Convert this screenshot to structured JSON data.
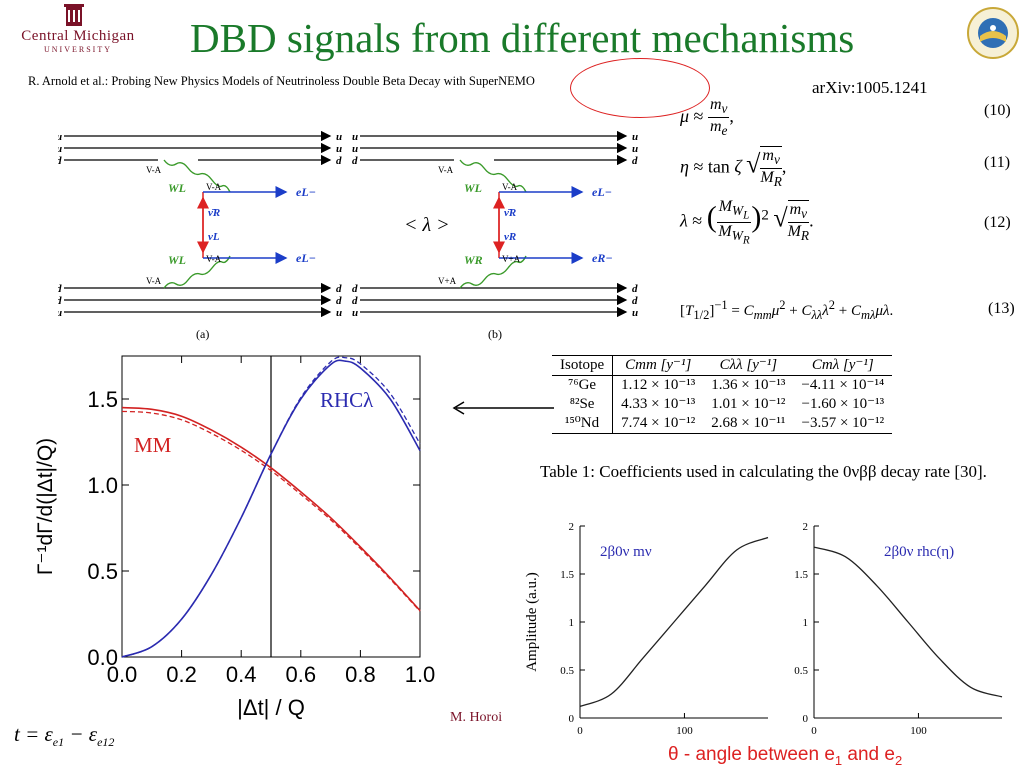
{
  "slide": {
    "title": "DBD signals from different mechanisms",
    "logo_left": {
      "line1": "Central Michigan",
      "line2": "UNIVERSITY"
    },
    "paper_reference": "R. Arnold et al.: Probing New Physics Models of Neutrinoless Double Beta Decay with SuperNEMO",
    "arxiv": "arXiv:1005.1241",
    "lambda_label": "< λ >",
    "author": "M. Horoi",
    "t_formula": "t = εe1 − εe12",
    "theta_caption": "θ - angle between e1 and e2"
  },
  "equations": [
    {
      "lhs": "μ ≈",
      "rhs": "mν / me ,",
      "num": "(10)"
    },
    {
      "lhs": "η ≈ tan ζ",
      "rhs": "√(mν / MR) ,",
      "num": "(11)"
    },
    {
      "lhs": "λ ≈",
      "rhs": "(MWL / MWR)² √(mν / MR) .",
      "num": "(12)"
    },
    {
      "lhs": "[T1/2]⁻¹ = Cmm μ² + Cλλ λ² + Cmλ μ λ .",
      "rhs": "",
      "num": "(13)"
    }
  ],
  "feynman": {
    "captions": [
      "(a)",
      "(b)"
    ],
    "quark_labels_top": [
      "u",
      "u",
      "d"
    ],
    "quark_labels_bottom": [
      "d",
      "d",
      "u"
    ],
    "diagram_a": {
      "W_top": "WL",
      "W_bottom": "WL",
      "vertex_top": "V-A",
      "vertex_bottom": "V-A",
      "vertex_mid_top": "V-A",
      "vertex_mid_bottom": "V-A",
      "nu_R": "ν̄R",
      "nu_L": "νL",
      "e_top": "eL−",
      "e_bottom": "eL−"
    },
    "diagram_b": {
      "W_top": "WL",
      "W_bottom": "WR",
      "vertex_top": "V-A",
      "vertex_bottom": "V+A",
      "vertex_mid_top": "V-A",
      "vertex_mid_bottom": "V+A",
      "nu_R": "ν̄R",
      "nu_R2": "νR",
      "e_top": "eL−",
      "e_bottom": "eR−"
    }
  },
  "table": {
    "headers": [
      "Isotope",
      "Cmm [y⁻¹]",
      "Cλλ [y⁻¹]",
      "Cmλ [y⁻¹]"
    ],
    "rows": [
      [
        "⁷⁶Ge",
        "1.12 × 10⁻¹³",
        "1.36 × 10⁻¹³",
        "−4.11 × 10⁻¹⁴"
      ],
      [
        "⁸²Se",
        "4.33 × 10⁻¹³",
        "1.01 × 10⁻¹²",
        "−1.60 × 10⁻¹³"
      ],
      [
        "¹⁵⁰Nd",
        "7.74 × 10⁻¹²",
        "2.68 × 10⁻¹¹",
        "−3.57 × 10⁻¹²"
      ]
    ],
    "caption": "Table 1: Coefficients used in calculating the 0νββ decay rate [30]."
  },
  "chart_data": [
    {
      "type": "line",
      "xlabel": "|Δt| / Q",
      "ylabel": "Γ⁻¹dΓ/d(|Δt|/Q)",
      "xlim": [
        0,
        1
      ],
      "ylim": [
        0,
        1.75
      ],
      "xticks": [
        "0.0",
        "0.2",
        "0.4",
        "0.6",
        "0.8",
        "1.0"
      ],
      "yticks": [
        "0.0",
        "0.5",
        "1.0",
        "1.5"
      ],
      "vline_x": 0.5,
      "series": [
        {
          "name": "MM",
          "color": "#d22222",
          "x": [
            0,
            0.1,
            0.2,
            0.3,
            0.4,
            0.5,
            0.6,
            0.7,
            0.8,
            0.9,
            1.0
          ],
          "y": [
            1.45,
            1.44,
            1.4,
            1.32,
            1.22,
            1.1,
            0.96,
            0.81,
            0.64,
            0.46,
            0.27
          ]
        },
        {
          "name": "RHCλ",
          "color": "#2b2bb0",
          "x": [
            0,
            0.1,
            0.2,
            0.3,
            0.4,
            0.5,
            0.6,
            0.7,
            0.75,
            0.8,
            0.9,
            1.0
          ],
          "y": [
            0.0,
            0.06,
            0.22,
            0.48,
            0.81,
            1.18,
            1.5,
            1.7,
            1.72,
            1.68,
            1.5,
            1.2
          ]
        }
      ]
    },
    {
      "type": "line",
      "title": "2β0ν mν",
      "ylabel": "Amplitude (a.u.)",
      "xlim": [
        0,
        180
      ],
      "ylim": [
        0,
        2
      ],
      "xticks": [
        "0",
        "100"
      ],
      "yticks": [
        "0",
        "0.5",
        "1",
        "1.5",
        "2"
      ],
      "series": [
        {
          "x": [
            0,
            30,
            60,
            90,
            120,
            150,
            180
          ],
          "y": [
            0.12,
            0.25,
            0.62,
            1.0,
            1.38,
            1.75,
            1.88
          ]
        }
      ]
    },
    {
      "type": "line",
      "title": "2β0ν rhc(η)",
      "xlim": [
        0,
        180
      ],
      "ylim": [
        0,
        2
      ],
      "xticks": [
        "0",
        "100"
      ],
      "yticks": [
        "0",
        "0.5",
        "1",
        "1.5",
        "2"
      ],
      "series": [
        {
          "x": [
            0,
            30,
            60,
            90,
            120,
            150,
            180
          ],
          "y": [
            1.78,
            1.68,
            1.38,
            1.0,
            0.62,
            0.32,
            0.22
          ]
        }
      ]
    }
  ],
  "colors": {
    "title_green": "#1a7a2a",
    "cmu_maroon": "#7a1228",
    "red": "#d22222",
    "blue": "#2b2bb0",
    "w_green": "#3a9a2a"
  }
}
